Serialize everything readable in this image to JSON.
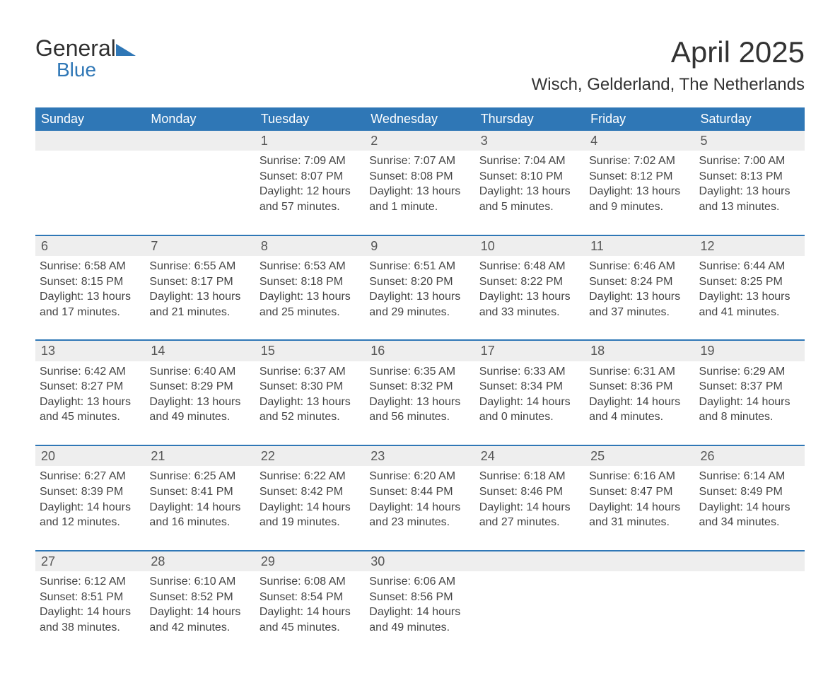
{
  "logo": {
    "word1": "General",
    "word2": "Blue"
  },
  "title": "April 2025",
  "location": "Wisch, Gelderland, The Netherlands",
  "colors": {
    "header_bg": "#2f77b6",
    "header_text": "#ffffff",
    "daynum_bg": "#eeeeee",
    "row_divider": "#2f77b6",
    "body_text": "#444444",
    "page_bg": "#ffffff"
  },
  "typography": {
    "title_fontsize": 42,
    "location_fontsize": 24,
    "dayheader_fontsize": 18,
    "cell_fontsize": 16
  },
  "layout": {
    "columns": 7,
    "rows": 5,
    "first_weekday": "Sunday"
  },
  "day_headers": [
    "Sunday",
    "Monday",
    "Tuesday",
    "Wednesday",
    "Thursday",
    "Friday",
    "Saturday"
  ],
  "weeks": [
    [
      null,
      null,
      {
        "n": "1",
        "sunrise": "7:09 AM",
        "sunset": "8:07 PM",
        "daylight": "12 hours and 57 minutes."
      },
      {
        "n": "2",
        "sunrise": "7:07 AM",
        "sunset": "8:08 PM",
        "daylight": "13 hours and 1 minute."
      },
      {
        "n": "3",
        "sunrise": "7:04 AM",
        "sunset": "8:10 PM",
        "daylight": "13 hours and 5 minutes."
      },
      {
        "n": "4",
        "sunrise": "7:02 AM",
        "sunset": "8:12 PM",
        "daylight": "13 hours and 9 minutes."
      },
      {
        "n": "5",
        "sunrise": "7:00 AM",
        "sunset": "8:13 PM",
        "daylight": "13 hours and 13 minutes."
      }
    ],
    [
      {
        "n": "6",
        "sunrise": "6:58 AM",
        "sunset": "8:15 PM",
        "daylight": "13 hours and 17 minutes."
      },
      {
        "n": "7",
        "sunrise": "6:55 AM",
        "sunset": "8:17 PM",
        "daylight": "13 hours and 21 minutes."
      },
      {
        "n": "8",
        "sunrise": "6:53 AM",
        "sunset": "8:18 PM",
        "daylight": "13 hours and 25 minutes."
      },
      {
        "n": "9",
        "sunrise": "6:51 AM",
        "sunset": "8:20 PM",
        "daylight": "13 hours and 29 minutes."
      },
      {
        "n": "10",
        "sunrise": "6:48 AM",
        "sunset": "8:22 PM",
        "daylight": "13 hours and 33 minutes."
      },
      {
        "n": "11",
        "sunrise": "6:46 AM",
        "sunset": "8:24 PM",
        "daylight": "13 hours and 37 minutes."
      },
      {
        "n": "12",
        "sunrise": "6:44 AM",
        "sunset": "8:25 PM",
        "daylight": "13 hours and 41 minutes."
      }
    ],
    [
      {
        "n": "13",
        "sunrise": "6:42 AM",
        "sunset": "8:27 PM",
        "daylight": "13 hours and 45 minutes."
      },
      {
        "n": "14",
        "sunrise": "6:40 AM",
        "sunset": "8:29 PM",
        "daylight": "13 hours and 49 minutes."
      },
      {
        "n": "15",
        "sunrise": "6:37 AM",
        "sunset": "8:30 PM",
        "daylight": "13 hours and 52 minutes."
      },
      {
        "n": "16",
        "sunrise": "6:35 AM",
        "sunset": "8:32 PM",
        "daylight": "13 hours and 56 minutes."
      },
      {
        "n": "17",
        "sunrise": "6:33 AM",
        "sunset": "8:34 PM",
        "daylight": "14 hours and 0 minutes."
      },
      {
        "n": "18",
        "sunrise": "6:31 AM",
        "sunset": "8:36 PM",
        "daylight": "14 hours and 4 minutes."
      },
      {
        "n": "19",
        "sunrise": "6:29 AM",
        "sunset": "8:37 PM",
        "daylight": "14 hours and 8 minutes."
      }
    ],
    [
      {
        "n": "20",
        "sunrise": "6:27 AM",
        "sunset": "8:39 PM",
        "daylight": "14 hours and 12 minutes."
      },
      {
        "n": "21",
        "sunrise": "6:25 AM",
        "sunset": "8:41 PM",
        "daylight": "14 hours and 16 minutes."
      },
      {
        "n": "22",
        "sunrise": "6:22 AM",
        "sunset": "8:42 PM",
        "daylight": "14 hours and 19 minutes."
      },
      {
        "n": "23",
        "sunrise": "6:20 AM",
        "sunset": "8:44 PM",
        "daylight": "14 hours and 23 minutes."
      },
      {
        "n": "24",
        "sunrise": "6:18 AM",
        "sunset": "8:46 PM",
        "daylight": "14 hours and 27 minutes."
      },
      {
        "n": "25",
        "sunrise": "6:16 AM",
        "sunset": "8:47 PM",
        "daylight": "14 hours and 31 minutes."
      },
      {
        "n": "26",
        "sunrise": "6:14 AM",
        "sunset": "8:49 PM",
        "daylight": "14 hours and 34 minutes."
      }
    ],
    [
      {
        "n": "27",
        "sunrise": "6:12 AM",
        "sunset": "8:51 PM",
        "daylight": "14 hours and 38 minutes."
      },
      {
        "n": "28",
        "sunrise": "6:10 AM",
        "sunset": "8:52 PM",
        "daylight": "14 hours and 42 minutes."
      },
      {
        "n": "29",
        "sunrise": "6:08 AM",
        "sunset": "8:54 PM",
        "daylight": "14 hours and 45 minutes."
      },
      {
        "n": "30",
        "sunrise": "6:06 AM",
        "sunset": "8:56 PM",
        "daylight": "14 hours and 49 minutes."
      },
      null,
      null,
      null
    ]
  ],
  "labels": {
    "sunrise": "Sunrise:",
    "sunset": "Sunset:",
    "daylight": "Daylight:"
  }
}
